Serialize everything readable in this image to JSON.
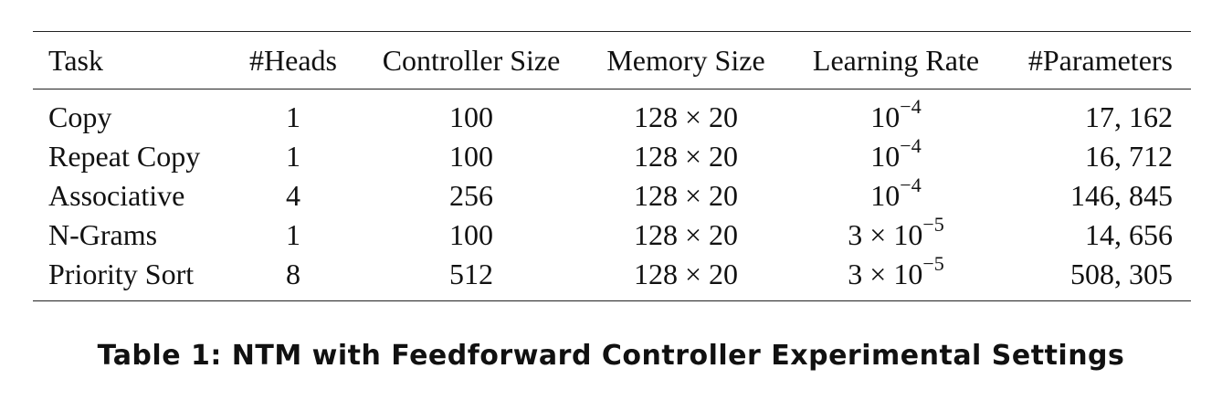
{
  "table": {
    "headers": [
      "Task",
      "#Heads",
      "Controller Size",
      "Memory Size",
      "Learning Rate",
      "#Parameters"
    ],
    "rows": [
      {
        "task": "Copy",
        "heads": "1",
        "controller_size": "100",
        "memory_size": "128 × 20",
        "lr_base": "10",
        "lr_exp": "−4",
        "params": "17, 162"
      },
      {
        "task": "Repeat Copy",
        "heads": "1",
        "controller_size": "100",
        "memory_size": "128 × 20",
        "lr_base": "10",
        "lr_exp": "−4",
        "params": "16, 712"
      },
      {
        "task": "Associative",
        "heads": "4",
        "controller_size": "256",
        "memory_size": "128 × 20",
        "lr_base": "10",
        "lr_exp": "−4",
        "params": "146, 845"
      },
      {
        "task": "N-Grams",
        "heads": "1",
        "controller_size": "100",
        "memory_size": "128 × 20",
        "lr_base": "3 × 10",
        "lr_exp": "−5",
        "params": "14, 656"
      },
      {
        "task": "Priority Sort",
        "heads": "8",
        "controller_size": "512",
        "memory_size": "128 × 20",
        "lr_base": "3 × 10",
        "lr_exp": "−5",
        "params": "508, 305"
      }
    ]
  },
  "caption": "Table 1: NTM with Feedforward Controller Experimental Settings"
}
